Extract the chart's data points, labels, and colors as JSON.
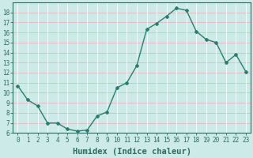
{
  "x": [
    0,
    1,
    2,
    3,
    4,
    5,
    6,
    7,
    8,
    9,
    10,
    11,
    12,
    13,
    14,
    15,
    16,
    17,
    18,
    19,
    20,
    21,
    22,
    23
  ],
  "y": [
    10.7,
    9.3,
    8.7,
    7.0,
    7.0,
    6.4,
    6.2,
    6.3,
    7.7,
    8.1,
    10.5,
    11.0,
    12.7,
    16.3,
    16.9,
    17.6,
    18.4,
    18.2,
    16.1,
    15.3,
    15.0,
    13.0,
    13.8,
    12.1
  ],
  "line_color": "#2d7d6e",
  "marker": "D",
  "marker_size": 2.0,
  "bg_color": "#cceae8",
  "grid_color_h": "#e8b4b8",
  "grid_color_v": "#ffffff",
  "xlabel": "Humidex (Indice chaleur)",
  "ylim": [
    6,
    19
  ],
  "xlim": [
    -0.5,
    23.5
  ],
  "yticks": [
    6,
    7,
    8,
    9,
    10,
    11,
    12,
    13,
    14,
    15,
    16,
    17,
    18
  ],
  "xticks": [
    0,
    1,
    2,
    3,
    4,
    5,
    6,
    7,
    8,
    9,
    10,
    11,
    12,
    13,
    14,
    15,
    16,
    17,
    18,
    19,
    20,
    21,
    22,
    23
  ],
  "tick_label_fontsize": 5.5,
  "xlabel_fontsize": 7.5,
  "label_color": "#2d6b61",
  "spine_color": "#2d6b61"
}
